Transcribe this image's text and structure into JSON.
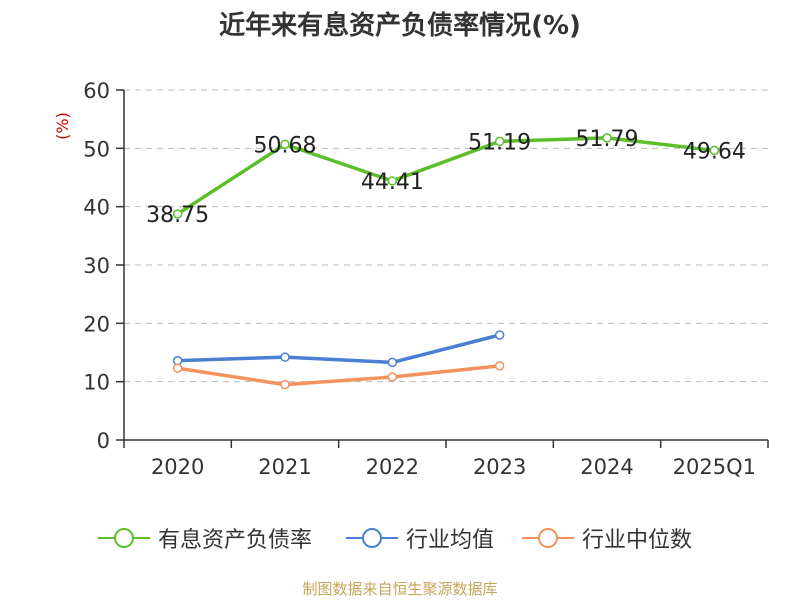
{
  "chart_data": {
    "type": "line",
    "title": "近年来有息资产负债率情况(%)",
    "ylabel": "(%)",
    "xlabel": "",
    "categories": [
      "2020",
      "2021",
      "2022",
      "2023",
      "2024",
      "2025Q1"
    ],
    "ylim": [
      0,
      60
    ],
    "yticks": [
      0,
      10,
      20,
      30,
      40,
      50,
      60
    ],
    "grid": true,
    "legend_position": "bottom",
    "series": [
      {
        "name": "有息资产负债率",
        "color": "#5cbf2a",
        "values": [
          38.75,
          50.68,
          44.41,
          51.19,
          51.79,
          49.64
        ],
        "data_labels": [
          "38.75",
          "50.68",
          "44.41",
          "51.19",
          "51.79",
          "49.64"
        ]
      },
      {
        "name": "行业均值",
        "color": "#4a7fd4",
        "values": [
          13.6,
          14.2,
          13.3,
          18.0,
          null,
          null
        ]
      },
      {
        "name": "行业中位数",
        "color": "#f4925e",
        "values": [
          12.3,
          9.5,
          10.8,
          12.7,
          null,
          null
        ]
      }
    ]
  },
  "source_text": "制图数据来自恒生聚源数据库",
  "colors": {
    "axis": "#333333",
    "grid": "#bbbbbb",
    "ylabel": "#cc0000",
    "source": "#c8a35a"
  }
}
